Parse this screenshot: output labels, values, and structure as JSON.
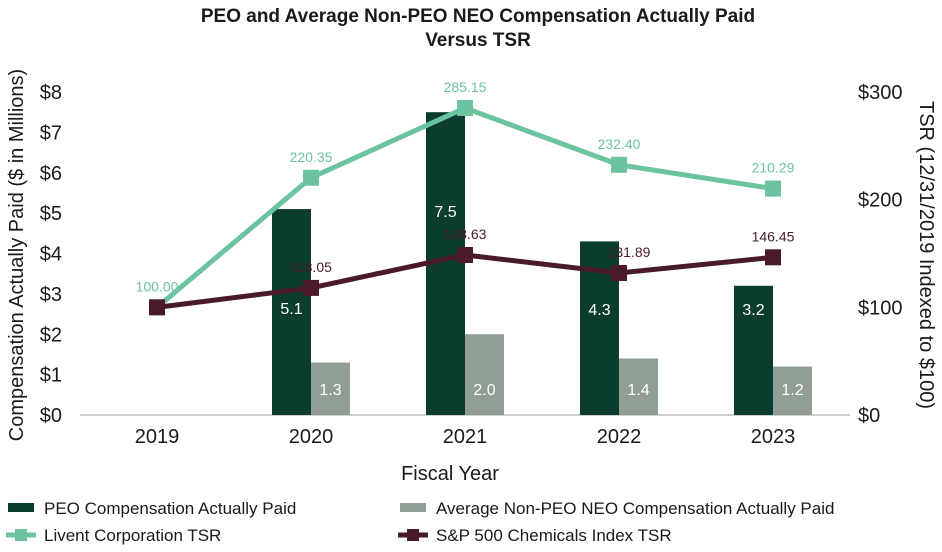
{
  "chart_data": {
    "type": "bar",
    "title_line1": "PEO and Average Non-PEO NEO Compensation Actually Paid",
    "title_line2": "Versus TSR",
    "xlabel": "Fiscal Year",
    "ylabel": "Compensation Actually Paid ($ in Millions)",
    "y2label": "TSR (12/31/2019 Indexed to $100)",
    "categories": [
      "2019",
      "2020",
      "2021",
      "2022",
      "2023"
    ],
    "ylim": [
      0,
      8
    ],
    "yticks": [
      "$0",
      "$1",
      "$2",
      "$3",
      "$4",
      "$5",
      "$6",
      "$7",
      "$8"
    ],
    "y2lim": [
      0,
      300
    ],
    "y2ticks": [
      "$0",
      "$100",
      "$200",
      "$300"
    ],
    "bar_series": [
      {
        "name": "PEO Compensation Actually Paid",
        "color": "#0b3d2e",
        "values": [
          null,
          5.1,
          7.5,
          4.3,
          3.2
        ],
        "labels": [
          "",
          "5.1",
          "7.5",
          "4.3",
          "3.2"
        ]
      },
      {
        "name": "Average Non-PEO NEO Compensation Actually Paid",
        "color": "#919e94",
        "values": [
          null,
          1.3,
          2.0,
          1.4,
          1.2
        ],
        "labels": [
          "",
          "1.3",
          "2.0",
          "1.4",
          "1.2"
        ]
      }
    ],
    "line_series": [
      {
        "name": "Livent Corporation TSR",
        "color": "#6cc3a0",
        "axis": "right",
        "values": [
          100.0,
          220.35,
          285.15,
          232.4,
          210.29
        ],
        "labels": [
          "100.00",
          "220.35",
          "285.15",
          "232.40",
          "210.29"
        ]
      },
      {
        "name": "S&P 500 Chemicals Index TSR",
        "color": "#4a1a2c",
        "axis": "right",
        "values": [
          100.0,
          118.05,
          148.63,
          131.89,
          146.45
        ],
        "labels": [
          "",
          "118.05",
          "148.63",
          "131.89",
          "146.45"
        ]
      }
    ],
    "legend_placement": "bottom",
    "grid": false
  }
}
